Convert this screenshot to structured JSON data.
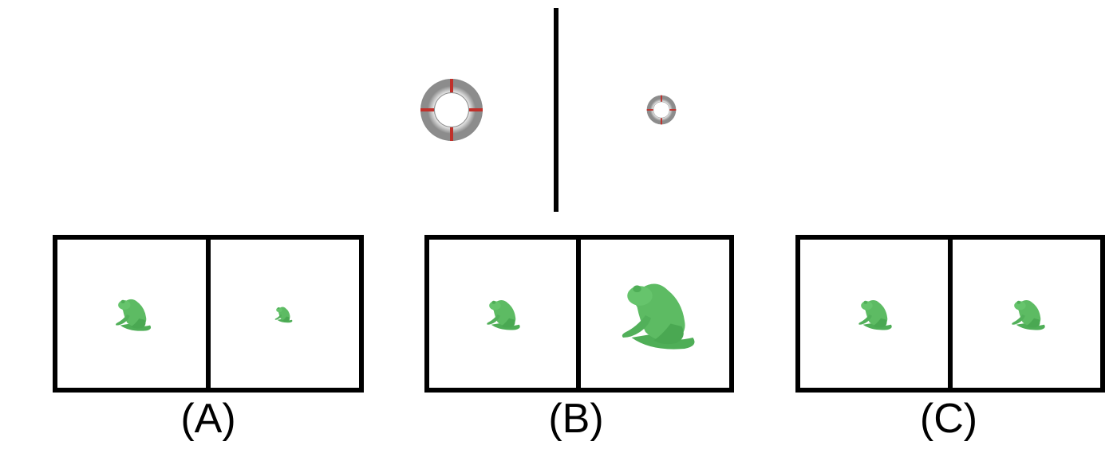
{
  "options": [
    {
      "id": "a",
      "label": "(A)",
      "left_scale": "medium",
      "right_scale": "small"
    },
    {
      "id": "b",
      "label": "(B)",
      "left_scale": "medium",
      "right_scale": "large"
    },
    {
      "id": "c",
      "label": "(C)",
      "left_scale": "medium",
      "right_scale": "medium"
    }
  ],
  "reference": {
    "left_object": "torus-icon",
    "right_object": "torus-icon",
    "left_scale": "large",
    "right_scale": "small"
  },
  "colors": {
    "frog": "#5dbb63",
    "frog_shadow": "#3f9a48",
    "torus": "#b8b8b8",
    "torus_highlight": "#e6e6e6",
    "torus_marks": "#c0302a",
    "frame": "#000000"
  }
}
